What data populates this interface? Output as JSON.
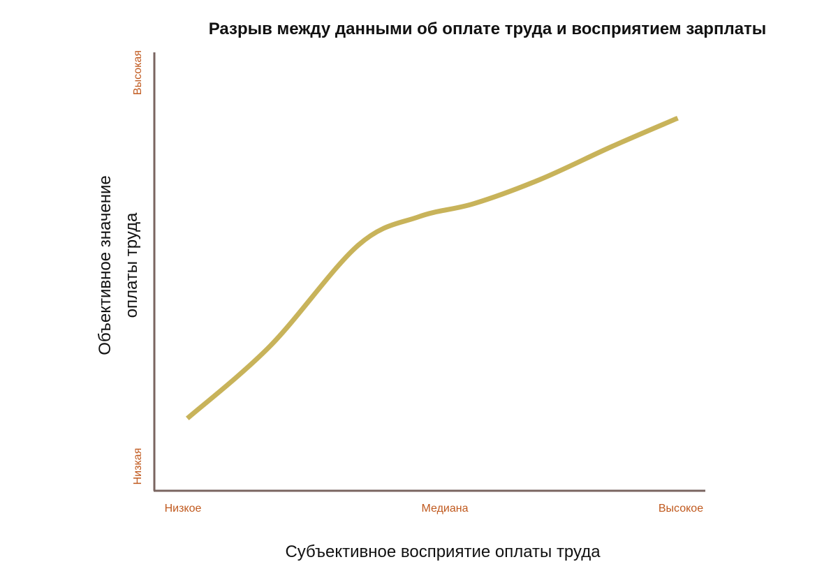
{
  "chart_data": {
    "type": "line",
    "title": "Разрыв между данными об оплате труда и восприятием зарплаты",
    "xlabel": "Субъективное восприятие оплаты труда",
    "ylabel_lines": [
      "Объективное значение",
      "оплаты труда"
    ],
    "x_ticks": [
      "Низкое",
      "Медиана",
      "Высокое"
    ],
    "y_ticks": [
      "Низкая",
      "Высокая"
    ],
    "xlim": [
      0,
      1
    ],
    "ylim": [
      0,
      1
    ],
    "grid": false,
    "series": [
      {
        "color": "#c8b35a",
        "points": [
          [
            0.06,
            0.165
          ],
          [
            0.21,
            0.33
          ],
          [
            0.37,
            0.56
          ],
          [
            0.48,
            0.625
          ],
          [
            0.58,
            0.655
          ],
          [
            0.7,
            0.71
          ],
          [
            0.83,
            0.785
          ],
          [
            0.95,
            0.85
          ]
        ]
      }
    ],
    "axis_color": "#7a6560",
    "tick_color": "#c0591e"
  }
}
